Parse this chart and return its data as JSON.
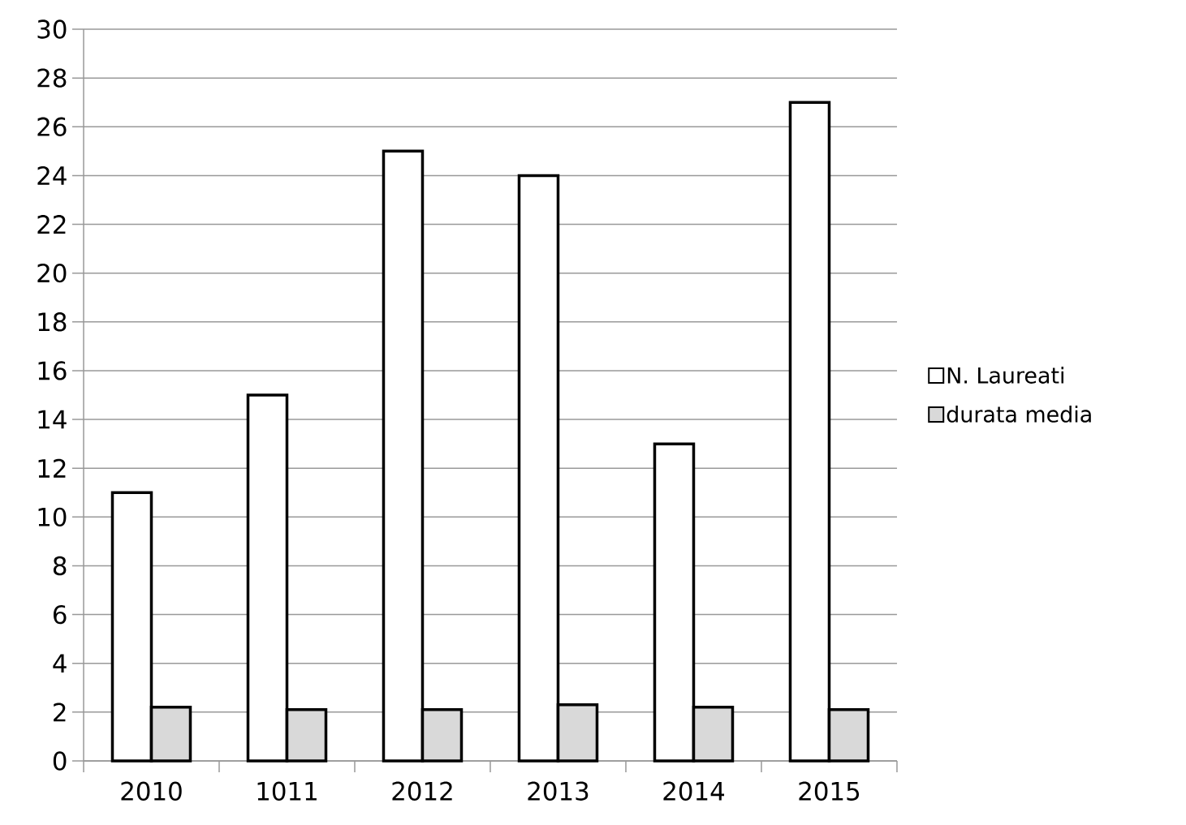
{
  "chart_data": {
    "type": "bar",
    "categories": [
      "2010",
      "1011",
      "2012",
      "2013",
      "2014",
      "2015"
    ],
    "series": [
      {
        "name": "N. Laureati",
        "color": "#ffffff",
        "values": [
          11,
          15,
          25,
          24,
          13,
          27
        ]
      },
      {
        "name": "durata  media",
        "color": "#d9d9d9",
        "values": [
          2.2,
          2.1,
          2.1,
          2.3,
          2.2,
          2.1
        ]
      }
    ],
    "ylim": [
      0,
      30
    ],
    "yticks": [
      0,
      2,
      4,
      6,
      8,
      10,
      12,
      14,
      16,
      18,
      20,
      22,
      24,
      26,
      28,
      30
    ],
    "grid": "y",
    "legend": "right"
  }
}
